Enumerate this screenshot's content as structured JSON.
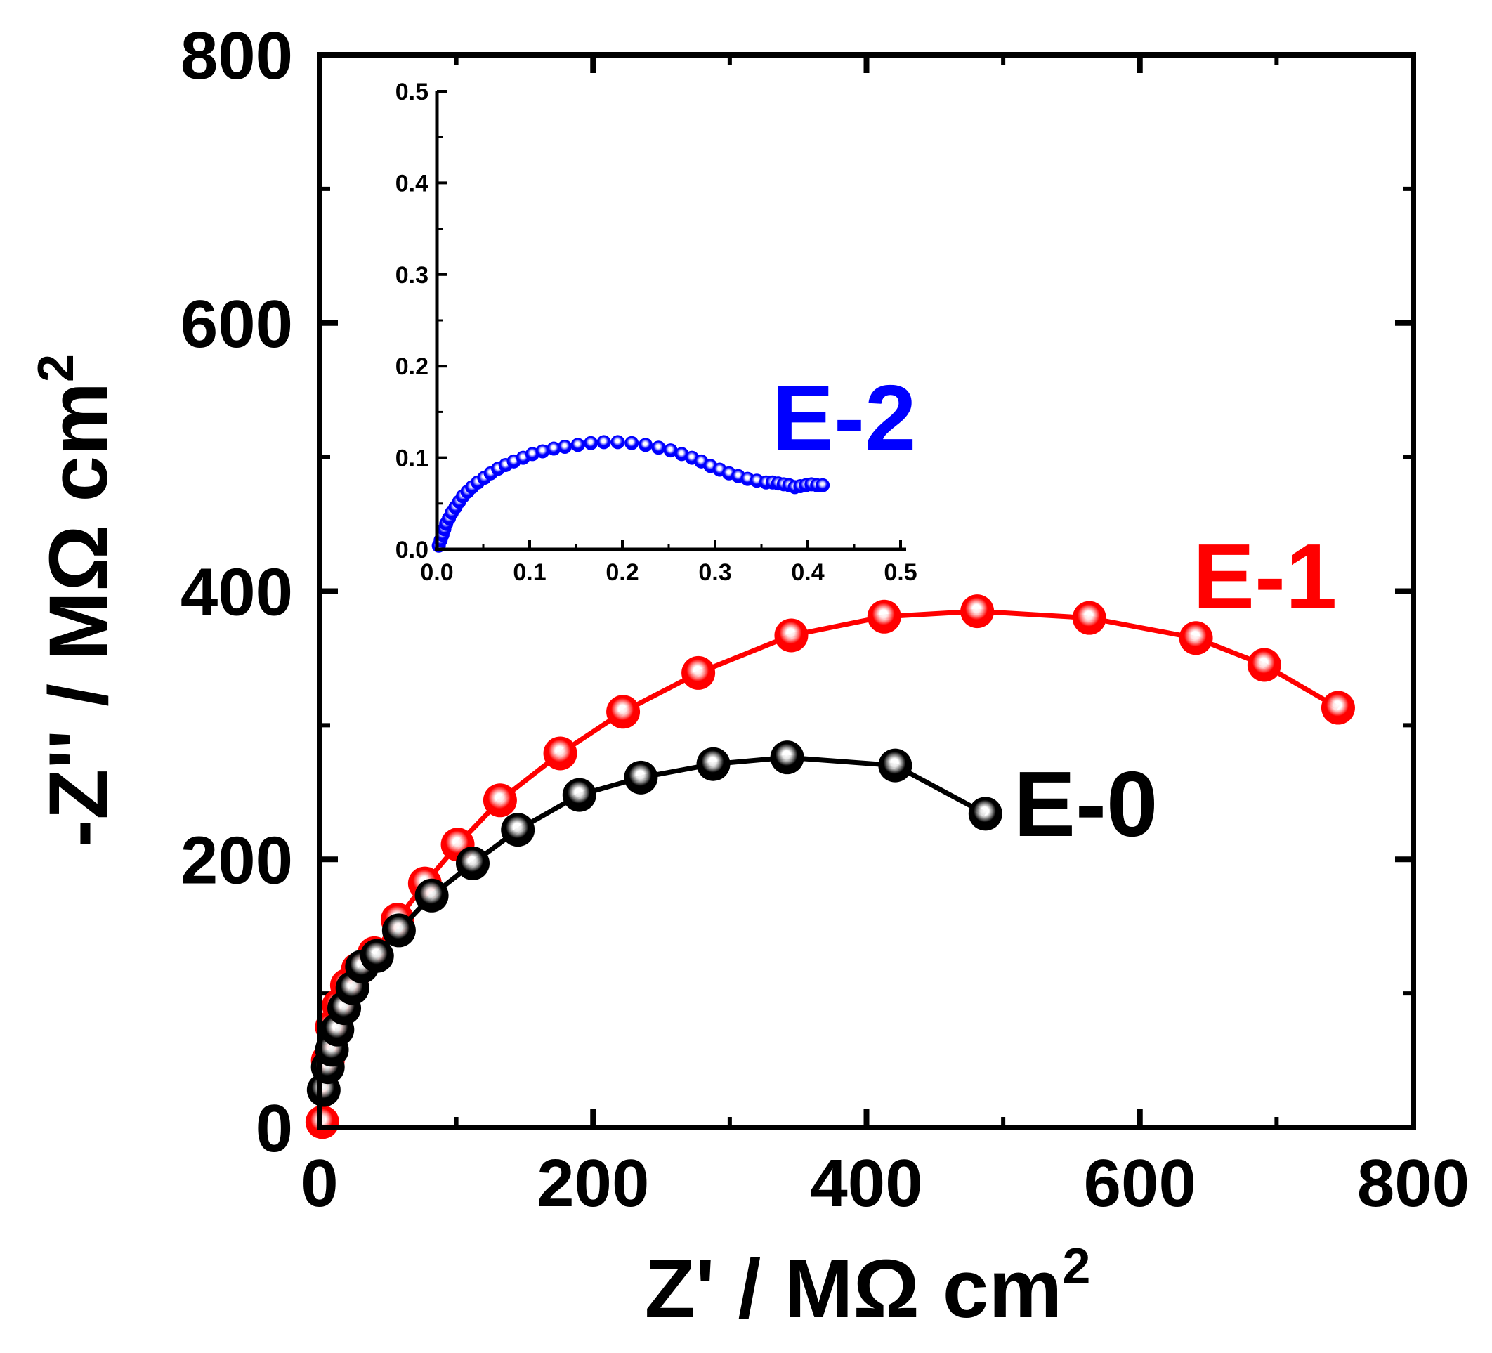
{
  "chart_data": [
    {
      "type": "line",
      "role": "main",
      "xlabel": "Z' / MΩ cm",
      "xlabel_sup": "2",
      "ylabel": "-Z'' / MΩ cm",
      "ylabel_sup": "2",
      "xlim": [
        0,
        800
      ],
      "ylim": [
        0,
        800
      ],
      "xticks": [
        "0",
        "200",
        "400",
        "600",
        "800"
      ],
      "yticks": [
        "0",
        "200",
        "400",
        "600",
        "800"
      ],
      "grid": false,
      "series": [
        {
          "name": "E-1",
          "color": "#ff0000",
          "x": [
            2,
            6,
            9,
            14,
            20,
            28,
            40,
            57,
            77,
            101,
            132,
            176,
            222,
            277,
            345,
            413,
            481,
            563,
            641,
            691,
            745
          ],
          "y": [
            4,
            50,
            75,
            91,
            106,
            118,
            130,
            155,
            182,
            211,
            244,
            279,
            310,
            339,
            367,
            381,
            385,
            380,
            365,
            345,
            313
          ]
        },
        {
          "name": "E-0",
          "color": "#000000",
          "x": [
            3,
            6,
            9,
            13,
            18,
            24,
            31,
            42,
            58,
            82,
            112,
            145,
            190,
            235,
            288,
            342,
            421,
            487
          ],
          "y": [
            28,
            45,
            58,
            73,
            89,
            104,
            120,
            128,
            147,
            173,
            197,
            222,
            248,
            261,
            271,
            276,
            270,
            234
          ]
        }
      ]
    },
    {
      "type": "scatter",
      "role": "inset",
      "xlim": [
        0,
        0.5
      ],
      "ylim": [
        0,
        0.5
      ],
      "xticks": [
        "0.0",
        "0.1",
        "0.2",
        "0.3",
        "0.4",
        "0.5"
      ],
      "yticks": [
        "0.0",
        "0.1",
        "0.2",
        "0.3",
        "0.4",
        "0.5"
      ],
      "grid": false,
      "series": [
        {
          "name": "E-2",
          "color": "#0000ff",
          "x": [
            0.002,
            0.004,
            0.006,
            0.008,
            0.01,
            0.013,
            0.016,
            0.02,
            0.024,
            0.028,
            0.033,
            0.038,
            0.044,
            0.051,
            0.058,
            0.066,
            0.074,
            0.083,
            0.093,
            0.103,
            0.114,
            0.126,
            0.138,
            0.152,
            0.166,
            0.18,
            0.195,
            0.21,
            0.225,
            0.239,
            0.252,
            0.264,
            0.275,
            0.285,
            0.295,
            0.305,
            0.315,
            0.325,
            0.335,
            0.345,
            0.355,
            0.362,
            0.368,
            0.374,
            0.38,
            0.386,
            0.392,
            0.398,
            0.404,
            0.41,
            0.416
          ],
          "y": [
            0.004,
            0.01,
            0.016,
            0.022,
            0.028,
            0.034,
            0.04,
            0.046,
            0.052,
            0.058,
            0.063,
            0.068,
            0.073,
            0.078,
            0.083,
            0.088,
            0.092,
            0.096,
            0.1,
            0.104,
            0.107,
            0.11,
            0.112,
            0.114,
            0.116,
            0.117,
            0.117,
            0.116,
            0.114,
            0.111,
            0.108,
            0.104,
            0.1,
            0.096,
            0.091,
            0.087,
            0.083,
            0.08,
            0.077,
            0.075,
            0.073,
            0.073,
            0.072,
            0.071,
            0.07,
            0.068,
            0.069,
            0.07,
            0.071,
            0.07,
            0.07
          ]
        }
      ]
    }
  ]
}
